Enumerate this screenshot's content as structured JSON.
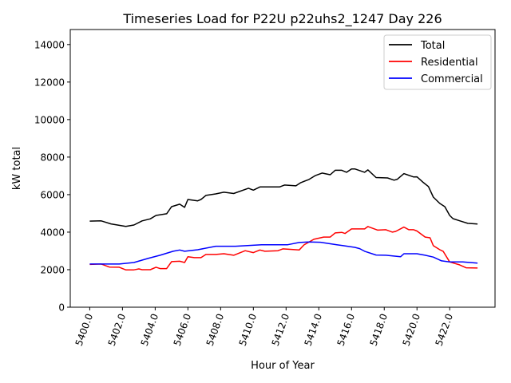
{
  "chart_data": {
    "type": "line",
    "title": "Timeseries Load for P22U p22uhs2_1247  Day 226",
    "xlabel": "Hour of Year",
    "ylabel": "kW total",
    "xlim": [
      5398.81,
      5424.77
    ],
    "ylim": [
      0,
      14800
    ],
    "grid": false,
    "legend_position": "top-right",
    "xticks": [
      5400,
      5402,
      5404,
      5406,
      5408,
      5410,
      5412,
      5414,
      5416,
      5418,
      5420,
      5422
    ],
    "xtick_labels": [
      "5400.0",
      "5402.0",
      "5404.0",
      "5406.0",
      "5408.0",
      "5410.0",
      "5412.0",
      "5414.0",
      "5416.0",
      "5418.0",
      "5420.0",
      "5422.0"
    ],
    "yticks": [
      0,
      2000,
      4000,
      6000,
      8000,
      10000,
      12000,
      14000
    ],
    "ytick_labels": [
      "0",
      "2000",
      "4000",
      "6000",
      "8000",
      "10000",
      "12000",
      "14000"
    ],
    "series": [
      {
        "name": "Total",
        "color": "#000000",
        "x": [
          5400,
          5400.7,
          5401.3,
          5402.2,
          5402.7,
          5403.2,
          5403.7,
          5404.05,
          5404.7,
          5405.0,
          5405.5,
          5405.8,
          5406.0,
          5406.6,
          5406.8,
          5407.1,
          5407.7,
          5408.2,
          5408.8,
          5409.7,
          5410.0,
          5410.4,
          5411.6,
          5411.9,
          5412.6,
          5412.9,
          5413.4,
          5413.8,
          5414.2,
          5414.7,
          5415.0,
          5415.4,
          5415.7,
          5416.0,
          5416.2,
          5416.8,
          5417.0,
          5417.5,
          5418.2,
          5418.6,
          5418.8,
          5419.2,
          5419.8,
          5420.0,
          5420.4,
          5420.7,
          5421.0,
          5421.4,
          5421.7,
          5422.0,
          5422.2,
          5422.7,
          5423.1,
          5423.7
        ],
        "values": [
          4590,
          4600,
          4440,
          4310,
          4380,
          4600,
          4710,
          4890,
          4980,
          5360,
          5490,
          5320,
          5740,
          5670,
          5740,
          5960,
          6040,
          6130,
          6060,
          6340,
          6240,
          6410,
          6410,
          6510,
          6470,
          6640,
          6810,
          7020,
          7150,
          7060,
          7300,
          7300,
          7190,
          7370,
          7370,
          7190,
          7320,
          6910,
          6890,
          6770,
          6820,
          7120,
          6940,
          6950,
          6640,
          6430,
          5870,
          5530,
          5360,
          4890,
          4720,
          4580,
          4470,
          4430
        ]
      },
      {
        "name": "Residential",
        "color": "#ff0000",
        "x": [
          5400,
          5400.7,
          5401.2,
          5401.8,
          5402.2,
          5402.7,
          5403.0,
          5403.2,
          5403.7,
          5404.05,
          5404.3,
          5404.7,
          5405.0,
          5405.5,
          5405.8,
          5406.0,
          5406.4,
          5406.8,
          5407.1,
          5407.7,
          5408.2,
          5408.8,
          5409.5,
          5410.0,
          5410.4,
          5410.7,
          5411.5,
          5411.8,
          5412.8,
          5413.1,
          5413.7,
          5414.3,
          5414.7,
          5415.0,
          5415.4,
          5415.6,
          5416.0,
          5416.8,
          5417.0,
          5417.6,
          5418.1,
          5418.5,
          5418.7,
          5419.2,
          5419.5,
          5419.8,
          5420.0,
          5420.5,
          5420.8,
          5421.0,
          5421.4,
          5421.6,
          5422.0,
          5422.6,
          5423.0,
          5423.7
        ],
        "values": [
          2280,
          2300,
          2140,
          2130,
          1990,
          1990,
          2040,
          2000,
          2000,
          2130,
          2060,
          2060,
          2430,
          2450,
          2380,
          2690,
          2640,
          2640,
          2810,
          2810,
          2850,
          2770,
          3010,
          2910,
          3050,
          2980,
          3010,
          3110,
          3050,
          3320,
          3620,
          3740,
          3740,
          3960,
          3990,
          3930,
          4170,
          4170,
          4300,
          4110,
          4130,
          4000,
          4040,
          4270,
          4130,
          4130,
          4060,
          3740,
          3700,
          3280,
          3060,
          2980,
          2410,
          2260,
          2100,
          2090
        ]
      },
      {
        "name": "Commercial",
        "color": "#0000ff",
        "x": [
          5400,
          5401.8,
          5402.7,
          5403.2,
          5403.6,
          5404.3,
          5405.1,
          5405.5,
          5405.8,
          5406.6,
          5407.7,
          5408.9,
          5410.5,
          5412.1,
          5412.8,
          5413.4,
          5414.1,
          5415.1,
          5415.5,
          5416.2,
          5416.5,
          5416.8,
          5417.5,
          5418.1,
          5419.0,
          5419.2,
          5420.0,
          5420.5,
          5421.0,
          5421.5,
          5422.0,
          5422.8,
          5423.7
        ],
        "values": [
          2300,
          2300,
          2380,
          2510,
          2610,
          2770,
          2980,
          3050,
          2980,
          3060,
          3250,
          3250,
          3330,
          3330,
          3450,
          3480,
          3460,
          3330,
          3280,
          3190,
          3120,
          2980,
          2780,
          2770,
          2690,
          2850,
          2850,
          2770,
          2670,
          2470,
          2410,
          2410,
          2350
        ]
      }
    ]
  }
}
